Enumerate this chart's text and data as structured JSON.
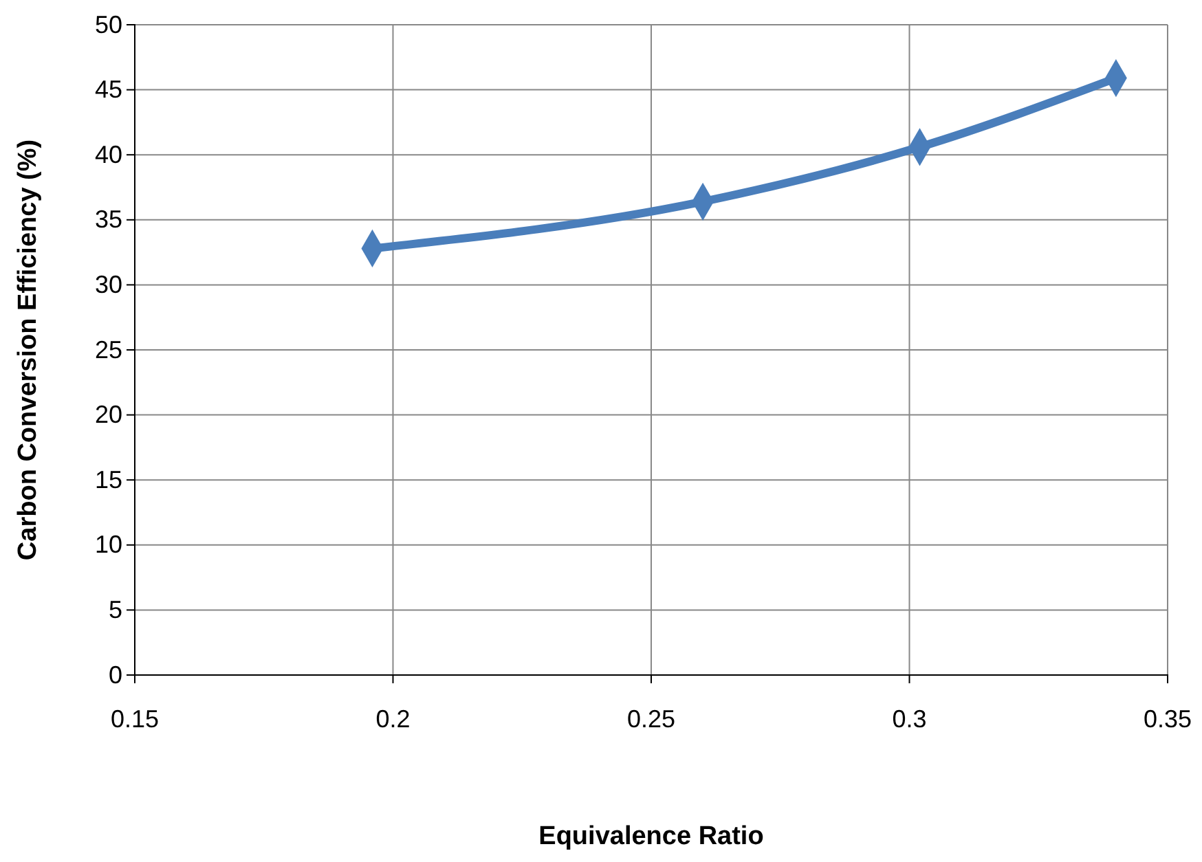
{
  "chart_data": {
    "type": "line",
    "xlabel": "Equivalence Ratio",
    "ylabel": "Carbon Conversion Efficiency (%)",
    "x": [
      0.196,
      0.26,
      0.302,
      0.34
    ],
    "series": [
      {
        "color": "#4a7ebb",
        "values": [
          32.8,
          36.4,
          40.6,
          45.9
        ]
      }
    ],
    "xlim": [
      0.15,
      0.35
    ],
    "xticks": [
      0.15,
      0.2,
      0.25,
      0.3,
      0.35
    ],
    "ylim": [
      0,
      50
    ],
    "yticks": [
      0,
      5,
      10,
      15,
      20,
      25,
      30,
      35,
      40,
      45,
      50
    ],
    "grid": true,
    "marker": "diamond",
    "line_style": "solid"
  }
}
